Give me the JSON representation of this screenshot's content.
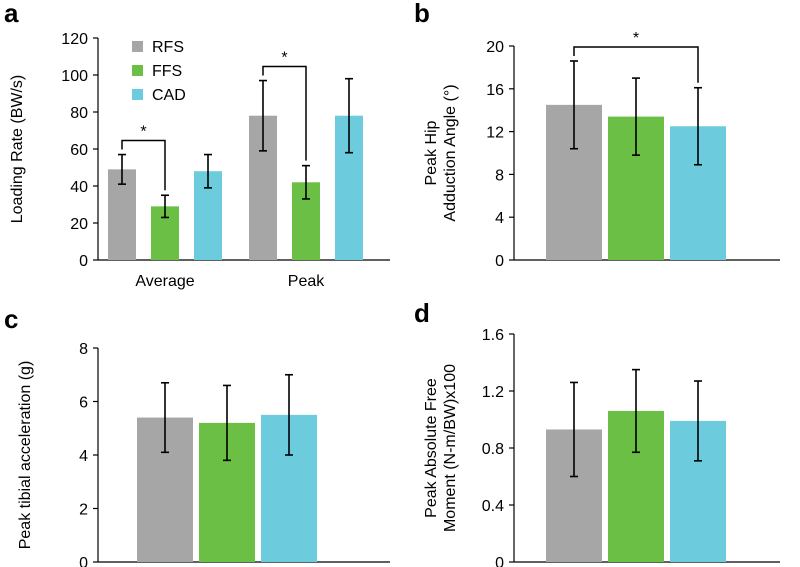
{
  "colors": {
    "RFS": "#a6a6a6",
    "FFS": "#6bbf45",
    "CAD": "#6ccbdc"
  },
  "chart_data": [
    {
      "id": "a",
      "panel_label": "a",
      "type": "bar",
      "ylabel": "Loading Rate (BW/s)",
      "ylim": [
        0,
        120
      ],
      "yticks": [
        0,
        20,
        40,
        60,
        80,
        100,
        120
      ],
      "categories": [
        "Average",
        "Peak"
      ],
      "legend": [
        "RFS",
        "FFS",
        "CAD"
      ],
      "series": [
        {
          "name": "RFS",
          "values": [
            49,
            78
          ],
          "errors": [
            8,
            19
          ]
        },
        {
          "name": "FFS",
          "values": [
            29,
            42
          ],
          "errors": [
            6,
            9
          ]
        },
        {
          "name": "CAD",
          "values": [
            48,
            78
          ],
          "errors": [
            9,
            20
          ]
        }
      ],
      "significance": [
        {
          "category": 0,
          "from": "RFS",
          "to": "FFS",
          "label": "*"
        },
        {
          "category": 1,
          "from": "RFS",
          "to": "FFS",
          "label": "*"
        }
      ]
    },
    {
      "id": "b",
      "panel_label": "b",
      "type": "bar",
      "ylabel_lines": [
        "Peak Hip",
        "Adduction Angle (°)"
      ],
      "ylim": [
        0,
        20
      ],
      "yticks": [
        0,
        4,
        8,
        12,
        16,
        20
      ],
      "categories": [
        ""
      ],
      "series": [
        {
          "name": "RFS",
          "values": [
            14.5
          ],
          "errors": [
            4.1
          ]
        },
        {
          "name": "FFS",
          "values": [
            13.4
          ],
          "errors": [
            3.6
          ]
        },
        {
          "name": "CAD",
          "values": [
            12.5
          ],
          "errors": [
            3.6
          ]
        }
      ],
      "significance": [
        {
          "category": 0,
          "from": "RFS",
          "to": "CAD",
          "label": "*"
        }
      ]
    },
    {
      "id": "c",
      "panel_label": "c",
      "type": "bar",
      "ylabel": "Peak tibial acceleration (g)",
      "ylim": [
        0,
        8
      ],
      "yticks": [
        0,
        2,
        4,
        6,
        8
      ],
      "categories": [
        ""
      ],
      "series": [
        {
          "name": "RFS",
          "values": [
            5.4
          ],
          "errors": [
            1.3
          ]
        },
        {
          "name": "FFS",
          "values": [
            5.2
          ],
          "errors": [
            1.4
          ]
        },
        {
          "name": "CAD",
          "values": [
            5.5
          ],
          "errors": [
            1.5
          ]
        }
      ],
      "significance": []
    },
    {
      "id": "d",
      "panel_label": "d",
      "type": "bar",
      "ylabel_lines": [
        "Peak Absolute Free",
        "Moment (N-m/BW)x100"
      ],
      "ylim": [
        0,
        1.6
      ],
      "yticks": [
        "0",
        "0.4",
        "0.8",
        "1.2",
        "1.6"
      ],
      "categories": [
        ""
      ],
      "series": [
        {
          "name": "RFS",
          "values": [
            0.93
          ],
          "errors": [
            0.33
          ]
        },
        {
          "name": "FFS",
          "values": [
            1.06
          ],
          "errors": [
            0.29
          ]
        },
        {
          "name": "CAD",
          "values": [
            0.99
          ],
          "errors": [
            0.28
          ]
        }
      ],
      "significance": []
    }
  ]
}
